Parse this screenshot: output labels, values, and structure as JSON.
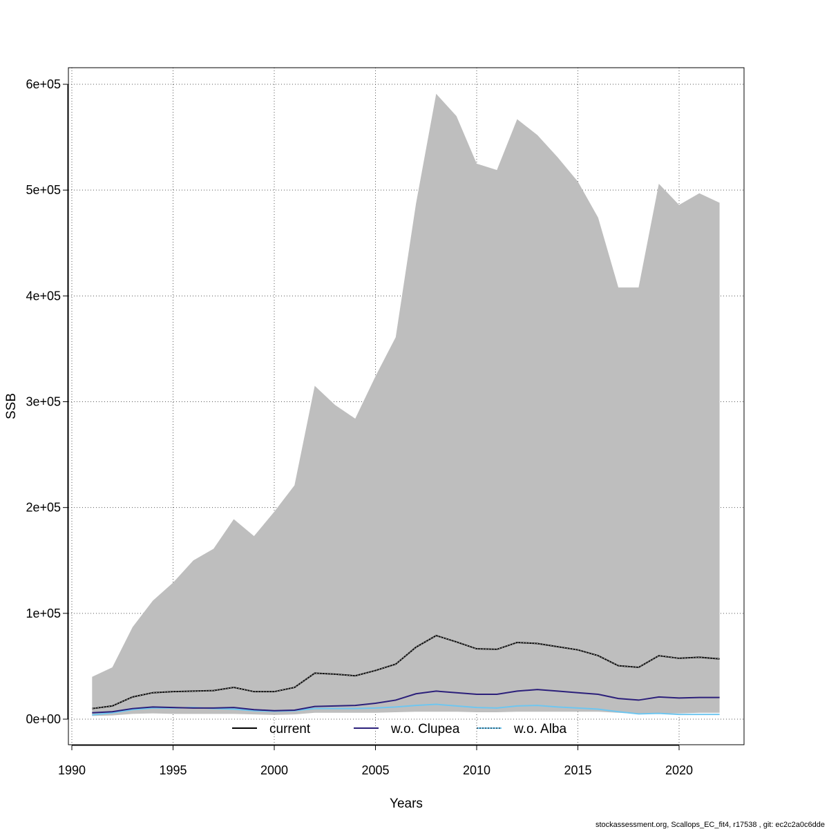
{
  "chart_data": {
    "type": "area",
    "xlabel": "Years",
    "ylabel": "SSB",
    "xlim": [
      1990,
      2023
    ],
    "ylim": [
      0,
      600000
    ],
    "x_ticks": [
      1990,
      1995,
      2000,
      2005,
      2010,
      2015,
      2020
    ],
    "x_tick_labels": [
      "1990",
      "1995",
      "2000",
      "2005",
      "2010",
      "2015",
      "2020"
    ],
    "y_ticks": [
      0,
      100000,
      200000,
      300000,
      400000,
      500000,
      600000
    ],
    "y_tick_labels": [
      "0e+00",
      "1e+05",
      "2e+05",
      "3e+05",
      "4e+05",
      "5e+05",
      "6e+05"
    ],
    "grid": true,
    "legend_position": "bottom",
    "x": [
      1991,
      1992,
      1993,
      1994,
      1995,
      1996,
      1997,
      1998,
      1999,
      2000,
      2001,
      2002,
      2003,
      2004,
      2005,
      2006,
      2007,
      2008,
      2009,
      2010,
      2011,
      2012,
      2013,
      2014,
      2015,
      2016,
      2017,
      2018,
      2019,
      2020,
      2021,
      2022
    ],
    "band": {
      "upper": [
        40000,
        49000,
        87000,
        112000,
        129000,
        150000,
        161000,
        189000,
        173000,
        196000,
        221000,
        315000,
        297000,
        284000,
        324000,
        361000,
        487000,
        591000,
        570000,
        525000,
        519000,
        567000,
        552000,
        531000,
        508000,
        474000,
        408000,
        408000,
        506000,
        486000,
        497000,
        488000
      ],
      "lower": [
        3000,
        3500,
        5000,
        5500,
        5000,
        5000,
        5000,
        5000,
        4500,
        4000,
        4500,
        6000,
        6000,
        6000,
        6000,
        6500,
        7000,
        7000,
        7000,
        6500,
        6500,
        7000,
        7000,
        7000,
        7000,
        7000,
        6000,
        5000,
        5500,
        5500,
        6000,
        6000
      ],
      "color": "#bebebe"
    },
    "series": [
      {
        "name": "current",
        "color": "#000000",
        "values": [
          10000,
          12500,
          21000,
          25000,
          26000,
          26500,
          27000,
          30000,
          26000,
          26000,
          30000,
          43500,
          42500,
          41000,
          46000,
          52000,
          68000,
          79000,
          73000,
          66500,
          66000,
          72500,
          71500,
          68500,
          65500,
          60000,
          50500,
          49000,
          60000,
          57500,
          58500,
          57000
        ]
      },
      {
        "name": "w.o. Clupea",
        "color": "#2b1f7a",
        "values": [
          6000,
          7000,
          10000,
          11500,
          11000,
          10500,
          10500,
          11000,
          9000,
          8000,
          8500,
          12000,
          12500,
          13000,
          15000,
          18000,
          24000,
          26500,
          25000,
          23500,
          23500,
          26500,
          28000,
          26500,
          25000,
          23500,
          19500,
          18000,
          21000,
          20000,
          20500,
          20500
        ]
      },
      {
        "name": "w.o. Alba",
        "color": "#6ec6f0",
        "values": [
          4000,
          6000,
          9000,
          10500,
          10500,
          11000,
          10000,
          9500,
          8000,
          7500,
          8000,
          10000,
          10000,
          10000,
          10500,
          11500,
          13000,
          14000,
          12500,
          11000,
          10500,
          12500,
          13000,
          11500,
          10500,
          9500,
          7000,
          5000,
          5500,
          4500,
          4500,
          4500
        ]
      }
    ]
  },
  "legend": {
    "items": [
      "current",
      "w.o. Clupea",
      "w.o. Alba"
    ]
  },
  "footer": {
    "text": "stockassessment.org, Scallops_EC_fit4, r17538 , git: ec2c2a0c6dde"
  }
}
